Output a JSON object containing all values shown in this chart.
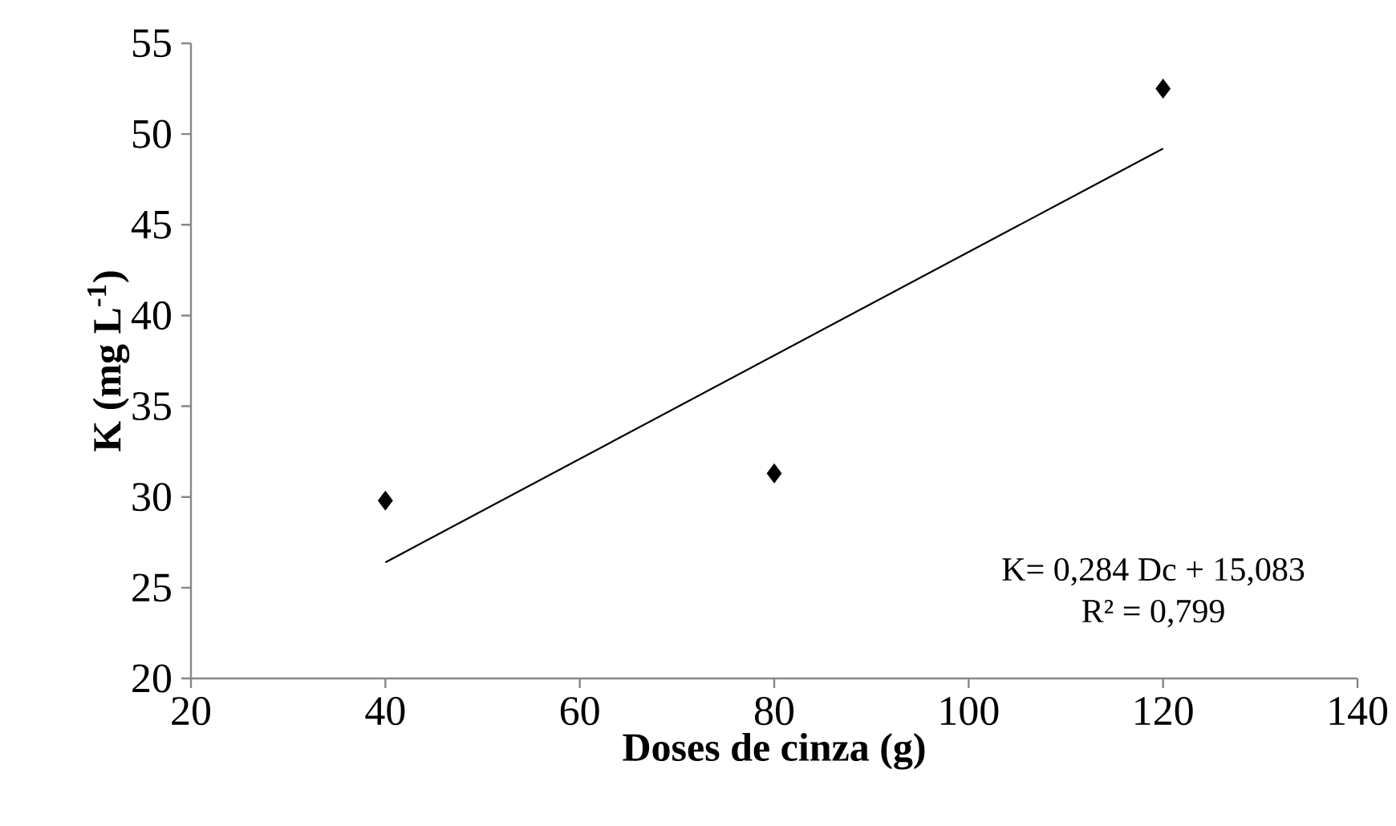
{
  "chart_data": {
    "type": "scatter",
    "xlabel": "**Doses de cinza (g)**",
    "ylabel": "**K (mg L$^{-1}$)**",
    "xlim": [
      20,
      140
    ],
    "ylim": [
      20,
      55
    ],
    "xticks": [
      20,
      40,
      60,
      80,
      100,
      120,
      140
    ],
    "yticks": [
      20,
      25,
      30,
      35,
      40,
      45,
      50,
      55
    ],
    "series": [
      {
        "color": "#000000",
        "marker": "diamond",
        "x": [
          40,
          80,
          120
        ],
        "values": [
          29.8,
          31.3,
          52.5
        ]
      },
      {
        "type": "line",
        "color": "#000000",
        "marker": "none",
        "line_style": "solid",
        "x": [
          40,
          120
        ],
        "values": [
          26.4,
          49.2
        ]
      }
    ],
    "annotations": [
      "K= 0,284 Dc + 15,083",
      "R² = 0,799"
    ]
  }
}
